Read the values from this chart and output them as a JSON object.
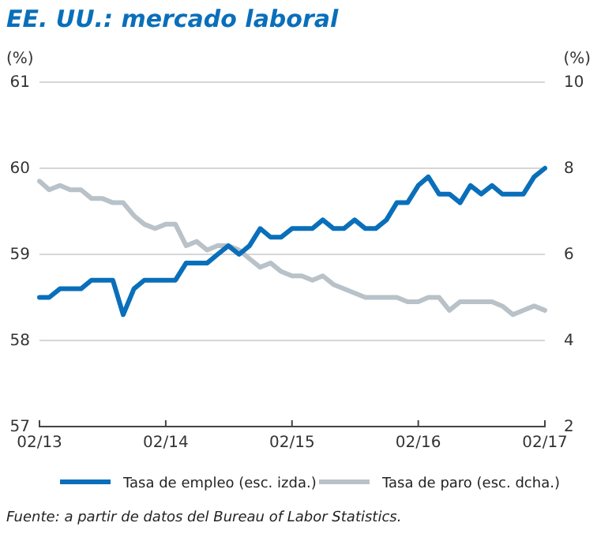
{
  "chart_data": {
    "type": "line",
    "title": "EE. UU.: mercado laboral",
    "ylabel": "(%)",
    "y2label": "(%)",
    "x": [
      "2013-02",
      "2013-03",
      "2013-04",
      "2013-05",
      "2013-06",
      "2013-07",
      "2013-08",
      "2013-09",
      "2013-10",
      "2013-11",
      "2013-12",
      "2014-01",
      "2014-02",
      "2014-03",
      "2014-04",
      "2014-05",
      "2014-06",
      "2014-07",
      "2014-08",
      "2014-09",
      "2014-10",
      "2014-11",
      "2014-12",
      "2015-01",
      "2015-02",
      "2015-03",
      "2015-04",
      "2015-05",
      "2015-06",
      "2015-07",
      "2015-08",
      "2015-09",
      "2015-10",
      "2015-11",
      "2015-12",
      "2016-01",
      "2016-02",
      "2016-03",
      "2016-04",
      "2016-05",
      "2016-06",
      "2016-07",
      "2016-08",
      "2016-09",
      "2016-10",
      "2016-11",
      "2016-12",
      "2017-01",
      "2017-02"
    ],
    "series": [
      {
        "name": "Tasa de empleo (esc. izda.)",
        "color": "#0a6fba",
        "values": [
          58.5,
          58.5,
          58.6,
          58.6,
          58.6,
          58.7,
          58.7,
          58.7,
          58.3,
          58.6,
          58.7,
          58.7,
          58.7,
          58.7,
          58.9,
          58.9,
          58.9,
          59.0,
          59.1,
          59.0,
          59.1,
          59.3,
          59.2,
          59.2,
          59.3,
          59.3,
          59.3,
          59.4,
          59.3,
          59.3,
          59.4,
          59.3,
          59.3,
          59.4,
          59.6,
          59.6,
          59.8,
          59.9,
          59.7,
          59.7,
          59.6,
          59.8,
          59.7,
          59.8,
          59.7,
          59.7,
          59.7,
          59.9,
          60.0
        ]
      },
      {
        "name": "Tasa de paro (esc. dcha.)",
        "color": "#b8c2c8",
        "axis": "y2",
        "values": [
          7.7,
          7.5,
          7.6,
          7.5,
          7.5,
          7.3,
          7.3,
          7.2,
          7.2,
          6.9,
          6.7,
          6.6,
          6.7,
          6.7,
          6.2,
          6.3,
          6.1,
          6.2,
          6.2,
          6.1,
          5.9,
          5.7,
          5.8,
          5.6,
          5.5,
          5.5,
          5.4,
          5.5,
          5.3,
          5.2,
          5.1,
          5.0,
          5.0,
          5.0,
          5.0,
          4.9,
          4.9,
          5.0,
          5.0,
          4.7,
          4.9,
          4.9,
          4.9,
          4.9,
          4.8,
          4.6,
          4.7,
          4.8,
          4.7
        ]
      }
    ],
    "xlim": [
      "2013-02",
      "2017-02"
    ],
    "xticks": [
      {
        "value": "2013-02",
        "label": "02/13"
      },
      {
        "value": "2014-02",
        "label": "02/14"
      },
      {
        "value": "2015-02",
        "label": "02/15"
      },
      {
        "value": "2016-02",
        "label": "02/16"
      },
      {
        "value": "2017-02",
        "label": "02/17"
      }
    ],
    "ylim": [
      57,
      61
    ],
    "yticks": [
      57,
      58,
      59,
      60,
      61
    ],
    "y2lim": [
      2,
      10
    ],
    "y2ticks": [
      2,
      4,
      6,
      8,
      10
    ],
    "grid": "y",
    "legend": "bottom",
    "marker": "none",
    "line_style": "solid",
    "annotations": [
      "Fuente: a partir de datos del Bureau of Labor Statistics."
    ]
  }
}
